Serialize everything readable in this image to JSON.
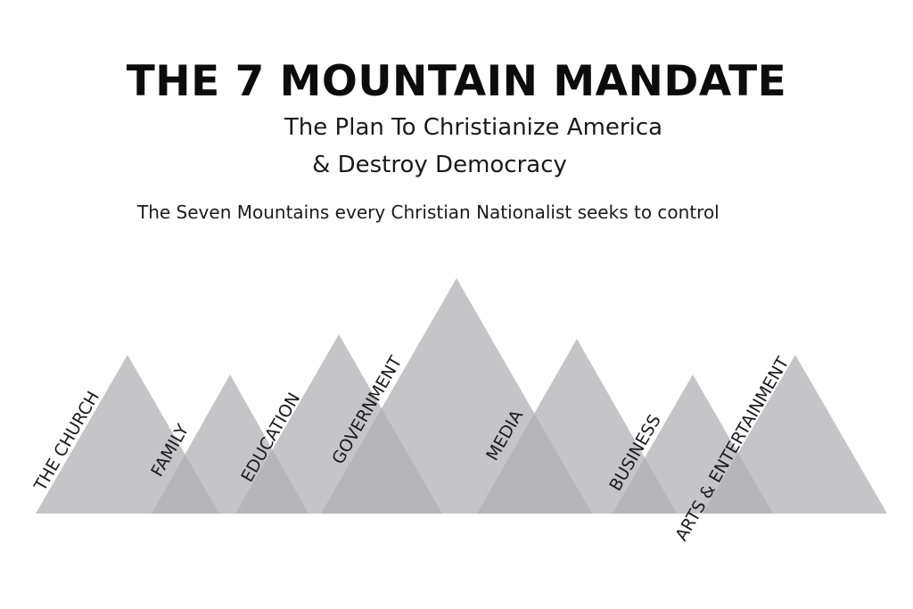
{
  "header": {
    "title": "THE 7 MOUNTAIN MANDATE",
    "subtitle_line1": "The Plan To Christianize America",
    "subtitle_line2": "& Destroy Democracy",
    "tagline": "The Seven Mountains every Christian Nationalist seeks to control"
  },
  "mountains": [
    {
      "label": "THE CHURCH"
    },
    {
      "label": "FAMILY"
    },
    {
      "label": "EDUCATION"
    },
    {
      "label": "GOVERNMENT"
    },
    {
      "label": "MEDIA"
    },
    {
      "label": "BUSINESS"
    },
    {
      "label": "ARTS & ENTERTAINMENT"
    }
  ],
  "colors": {
    "background": "#ffffff",
    "text": "#111111",
    "mountain_fill": "#a0a0a5",
    "overlap_fill": "#6d6d73"
  }
}
